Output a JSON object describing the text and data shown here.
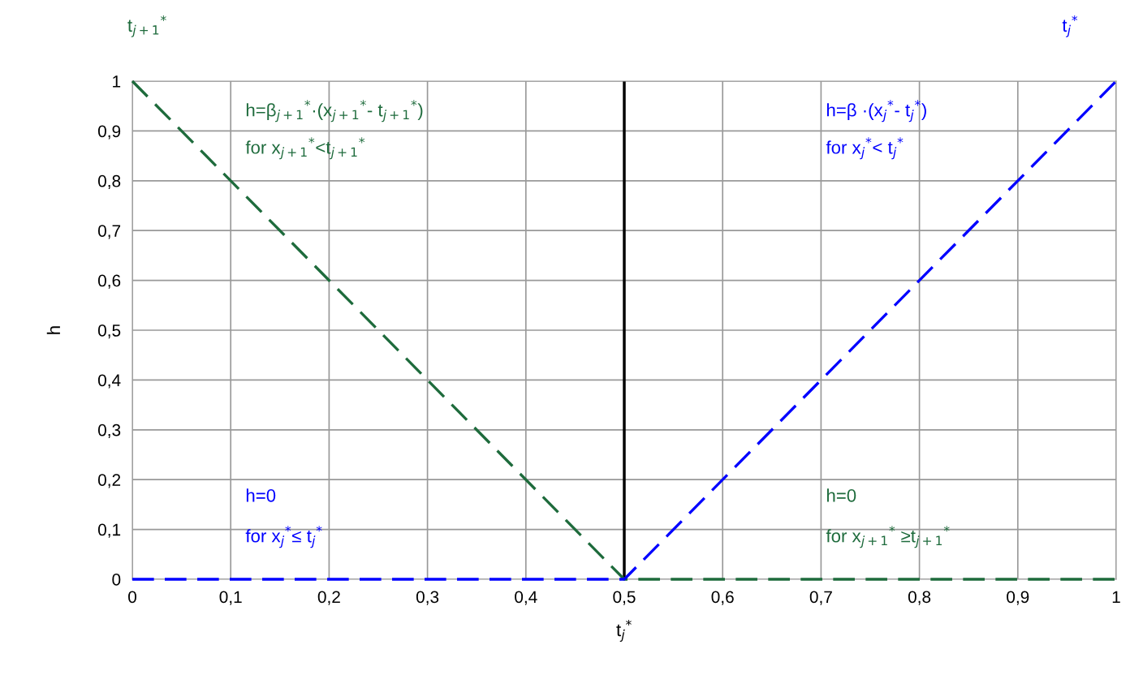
{
  "chart_data": {
    "type": "line",
    "xlabel": "t$_{j}$$^{*}$",
    "ylabel": "h",
    "series": [
      {
        "color": "#1e6b3c",
        "x": [
          0,
          0.5,
          1
        ],
        "values": [
          1,
          0,
          0
        ]
      },
      {
        "color": "#0000ff",
        "x": [
          0,
          0.5,
          1
        ],
        "values": [
          0,
          0,
          1
        ]
      }
    ],
    "xlim": [
      0,
      1
    ],
    "ylim": [
      0,
      1
    ],
    "xticks": [
      0,
      {
        "value": 0.1,
        "label": "0,1"
      },
      {
        "value": 0.2,
        "label": "0,2"
      },
      {
        "value": 0.3,
        "label": "0,3"
      },
      {
        "value": 0.4,
        "label": "0,4"
      },
      {
        "value": 0.5,
        "label": "0,5"
      },
      {
        "value": 0.6,
        "label": "0,6"
      },
      {
        "value": 0.7,
        "label": "0,7"
      },
      {
        "value": 0.8,
        "label": "0,8"
      },
      {
        "value": 0.9,
        "label": "0,9"
      },
      1
    ],
    "yticks": [
      0,
      {
        "value": 0.1,
        "label": "0,1"
      },
      {
        "value": 0.2,
        "label": "0,2"
      },
      {
        "value": 0.3,
        "label": "0,3"
      },
      {
        "value": 0.4,
        "label": "0,4"
      },
      {
        "value": 0.5,
        "label": "0,5"
      },
      {
        "value": 0.6,
        "label": "0,6"
      },
      {
        "value": 0.7,
        "label": "0,7"
      },
      {
        "value": 0.8,
        "label": "0,8"
      },
      {
        "value": 0.9,
        "label": "0,9"
      },
      1
    ],
    "ref_lines": [
      {
        "axis": "x",
        "value": 0.5,
        "color": "#000000",
        "line_style": "solid"
      }
    ],
    "annotations": [
      "h=β$_{j+1}$$^{*}$·(x$_{j+1}$$^{*}$- t$_{j+1}$$^{*}$)",
      "for x$_{j+1}$$^{*}$<t$_{j+1}$$^{*}$",
      "h=β ·(x$_{j}$$^{*}$- t$_{j}$$^{*}$)",
      "for x$_{j}$$^{*}$< t$_{j}$$^{*}$",
      "h=0",
      "for x$_{j}$$^{*}$≤ t$_{j}$$^{*}$",
      "h=0",
      "for x$_{j+1}$$^{*}$ ≥t$_{j+1}$$^{*}$",
      "t$_{j+1}$$^{*}$",
      "t$_{j}$$^{*}$"
    ],
    "grid": true,
    "line_style": "dashed",
    "marker": "none"
  }
}
